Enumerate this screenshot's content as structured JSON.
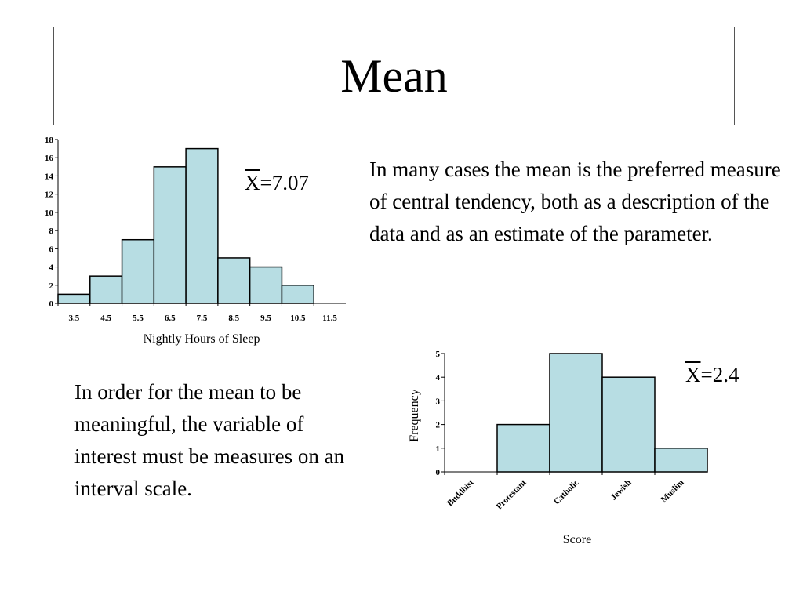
{
  "slide": {
    "title": "Mean",
    "paragraph_1": "In many cases the mean is the preferred measure of central tendency, both as a description of the data and as an estimate of the parameter.",
    "paragraph_2": "In order for the mean to be meaningful, the variable of interest must be measures on an interval scale.",
    "mean_1": {
      "symbol": "X",
      "value": "=7.07"
    },
    "mean_2": {
      "symbol": "X",
      "value": "=2.4"
    }
  },
  "colors": {
    "bar_fill": "#b7dde3",
    "bar_stroke": "#000000"
  },
  "chart_data": [
    {
      "type": "bar",
      "title": "",
      "xlabel": "Nightly Hours of Sleep",
      "ylabel": "",
      "categories": [
        "3.5",
        "4.5",
        "5.5",
        "6.5",
        "7.5",
        "8.5",
        "9.5",
        "10.5",
        "11.5"
      ],
      "values": [
        1,
        3,
        7,
        15,
        17,
        5,
        4,
        2,
        0
      ],
      "ylim": [
        0,
        18
      ],
      "yticks": [
        0,
        2,
        4,
        6,
        8,
        10,
        12,
        14,
        16,
        18
      ],
      "grid": false
    },
    {
      "type": "bar",
      "title": "",
      "xlabel": "Score",
      "ylabel": "Frequency",
      "categories": [
        "Buddhist",
        "Protestant",
        "Catholic",
        "Jewish",
        "Muslim"
      ],
      "values": [
        0,
        2,
        5,
        4,
        1
      ],
      "ylim": [
        0,
        5
      ],
      "yticks": [
        0,
        1,
        2,
        3,
        4,
        5
      ],
      "grid": false
    }
  ]
}
